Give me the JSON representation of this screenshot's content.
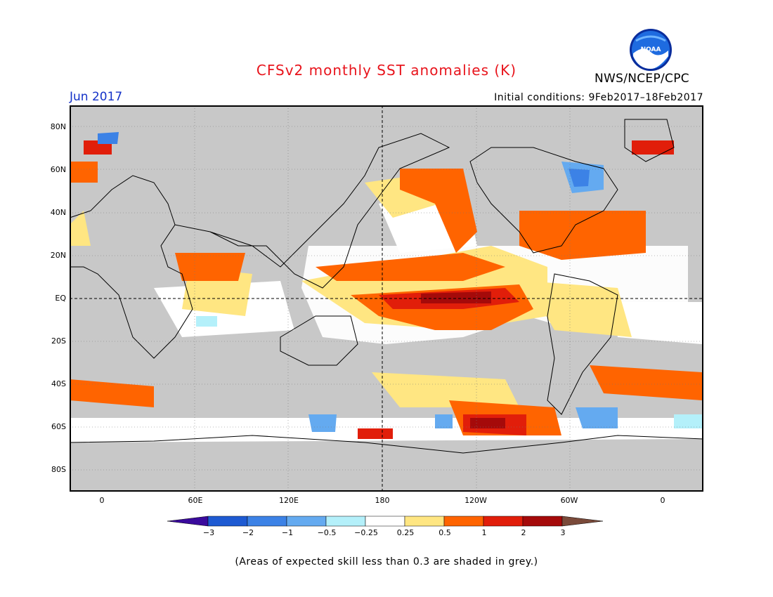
{
  "title": "CFSv2 monthly SST anomalies (K)",
  "period": "Jun 2017",
  "initial_conditions": "Initial conditions: 9Feb2017–18Feb2017",
  "agency": "NWS/NCEP/CPC",
  "logo_text": "NOAA",
  "footnote": "(Areas of expected skill less than 0.3 are shaded in grey.)",
  "map": {
    "lat_labels": [
      "80N",
      "60N",
      "40N",
      "20N",
      "EQ",
      "20S",
      "40S",
      "60S",
      "80S"
    ],
    "lon_labels": [
      "0",
      "60E",
      "120E",
      "180",
      "120W",
      "60W",
      "0"
    ],
    "colors": {
      "land": "#c8c8c8",
      "skill_grey": "#c8c8c8",
      "ocean_neutral": "#ffffff",
      "coast": "#000000"
    }
  },
  "colorbar": {
    "labels": [
      "−3",
      "−2",
      "−1",
      "−0.5",
      "−0.25",
      "0.25",
      "0.5",
      "1",
      "2",
      "3"
    ],
    "colors": [
      "#3a0a9c",
      "#1e5ad2",
      "#3c82e6",
      "#64aaf0",
      "#b4f0fa",
      "#ffffff",
      "#ffe682",
      "#ff6400",
      "#e11e0a",
      "#a50a0a",
      "#7a4a3a"
    ]
  }
}
